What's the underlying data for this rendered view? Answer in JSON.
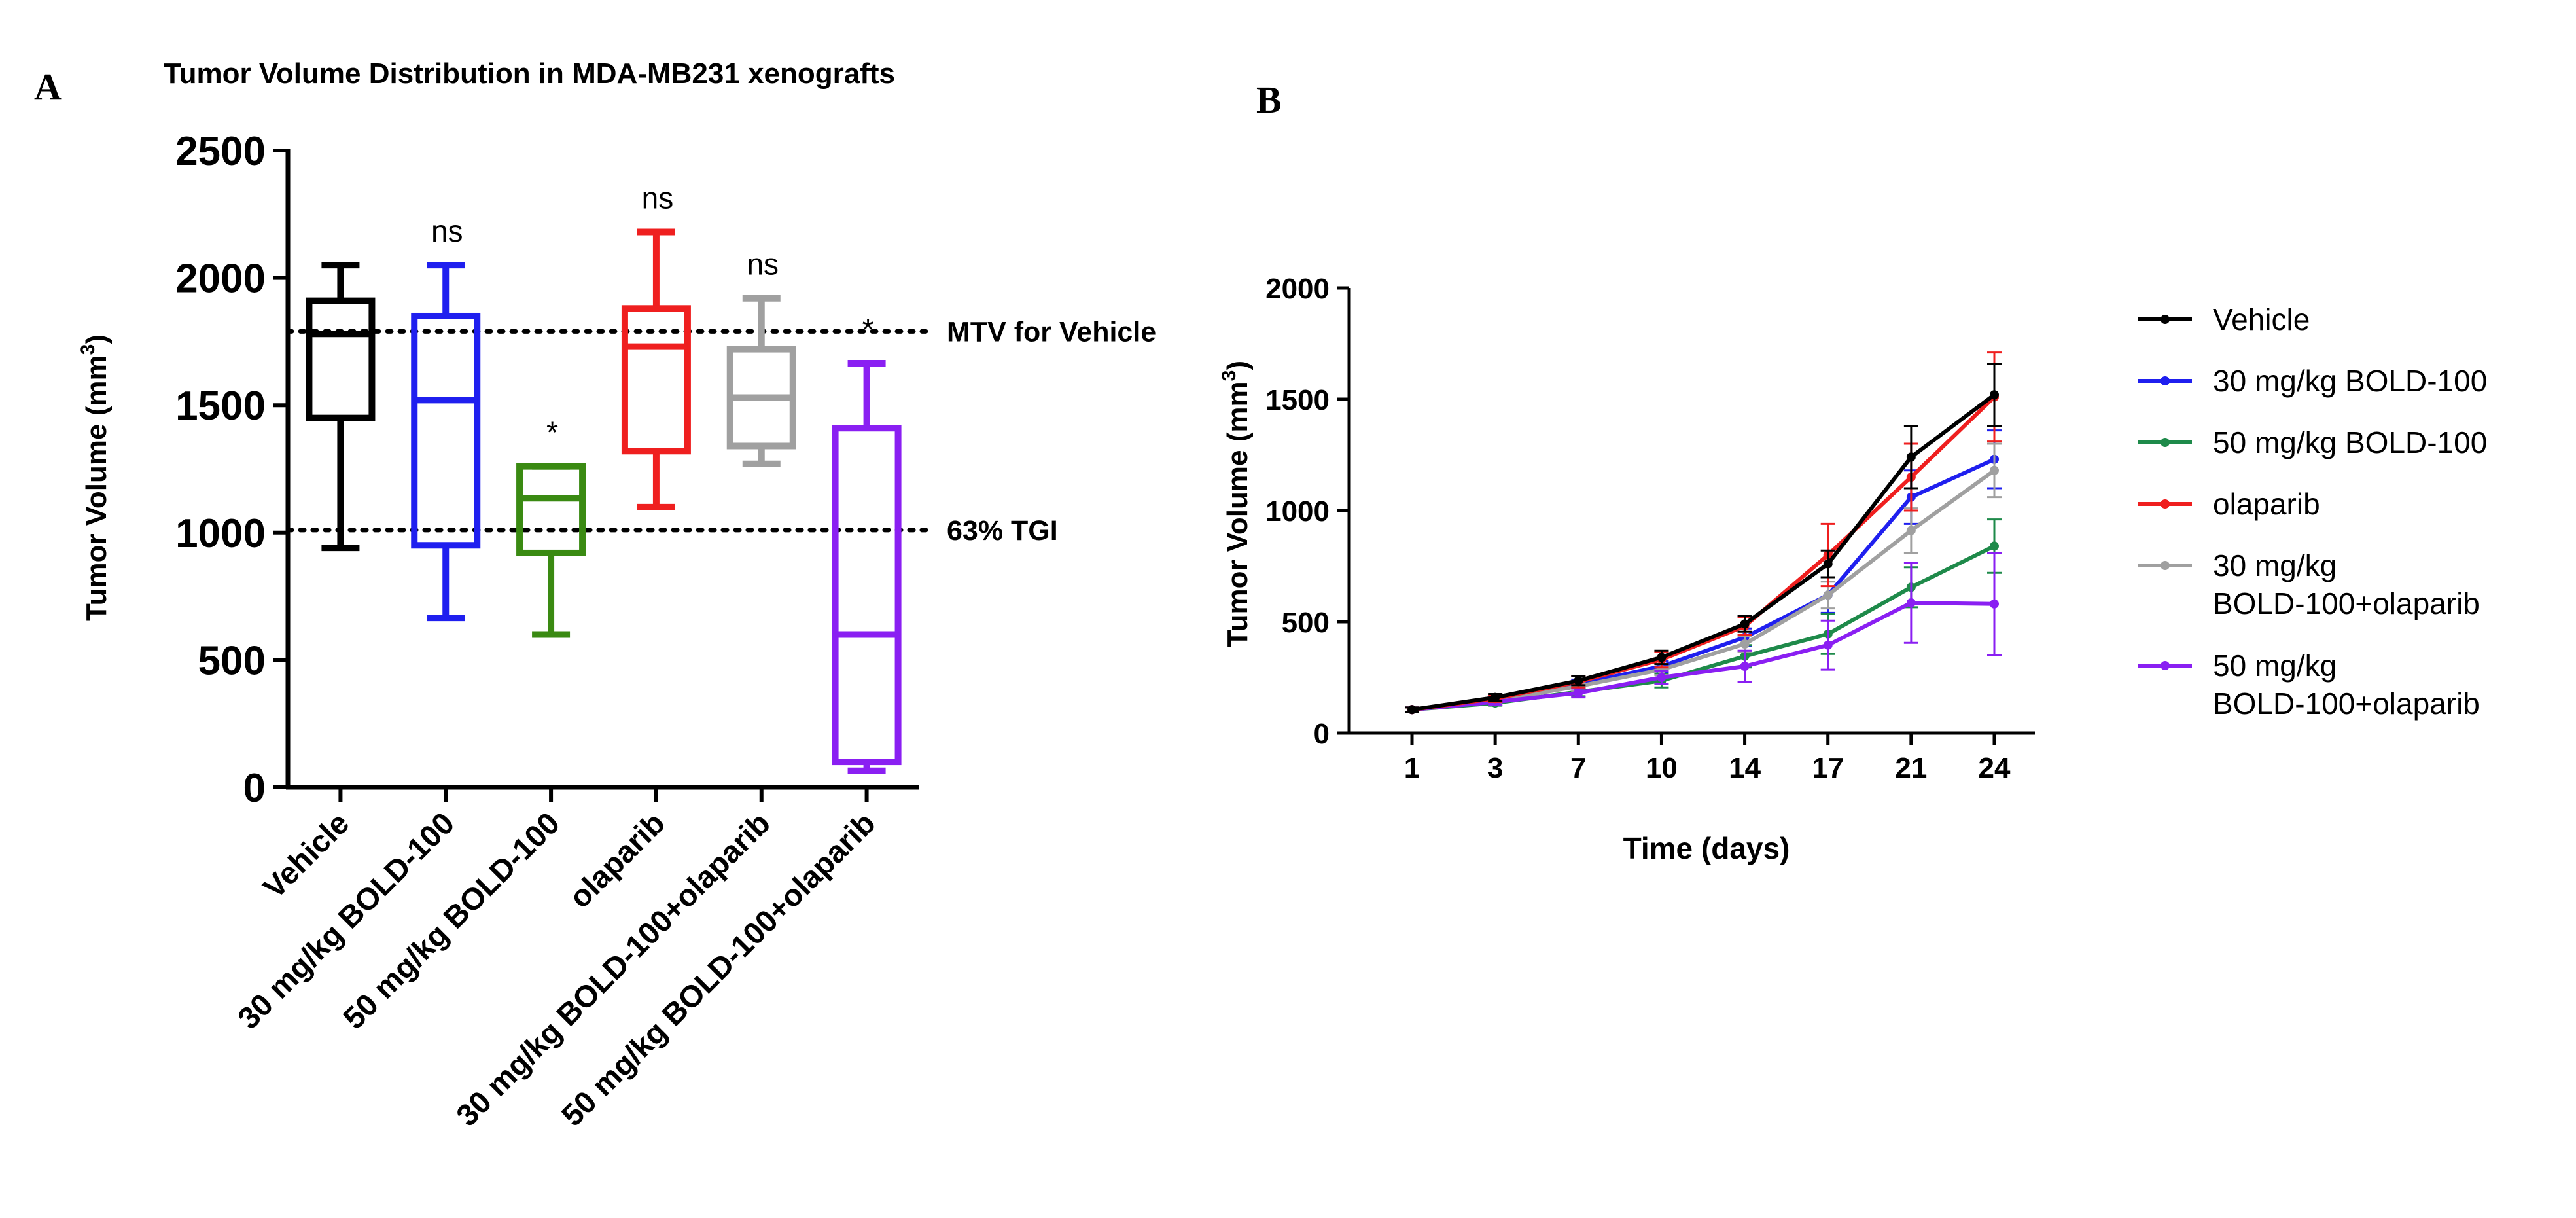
{
  "panel_a_label": "A",
  "panel_b_label": "B",
  "colors": {
    "vehicle": "#000000",
    "bold30": "#1f1fef",
    "bold50_box": "#3a8a12",
    "bold50_line": "#1e8a4a",
    "olaparib": "#ef1f1f",
    "combo30": "#a0a0a0",
    "combo50": "#8a1ff2"
  },
  "chart_data": [
    {
      "id": "A",
      "type": "box",
      "title": "Tumor Volume Distribution in MDA-MB231 xenografts",
      "ylabel": "Tumor Volume (mm",
      "ylabel_sup": "3",
      "ylabel_close": ")",
      "ylim": [
        0,
        2500
      ],
      "yticks": [
        0,
        500,
        1000,
        1500,
        2000,
        2500
      ],
      "reference_lines": [
        {
          "value": 1790,
          "label": "MTV for Vehicle"
        },
        {
          "value": 1010,
          "label": "63% TGI"
        }
      ],
      "groups": [
        {
          "name": "Vehicle",
          "color_key": "vehicle",
          "min": 940,
          "q1": 1450,
          "median": 1780,
          "q3": 1910,
          "max": 2050,
          "annotation": ""
        },
        {
          "name": "30 mg/kg BOLD-100",
          "color_key": "bold30",
          "min": 665,
          "q1": 950,
          "median": 1520,
          "q3": 1850,
          "max": 2050,
          "annotation": "ns"
        },
        {
          "name": "50 mg/kg BOLD-100",
          "color_key": "bold50_box",
          "min": 600,
          "q1": 920,
          "median": 1135,
          "q3": 1260,
          "max": 1260,
          "annotation": "*"
        },
        {
          "name": "olaparib",
          "color_key": "olaparib",
          "min": 1100,
          "q1": 1320,
          "median": 1730,
          "q3": 1880,
          "max": 2180,
          "annotation": "ns"
        },
        {
          "name": "30 mg/kg BOLD-100+olaparib",
          "color_key": "combo30",
          "min": 1270,
          "q1": 1340,
          "median": 1530,
          "q3": 1720,
          "max": 1920,
          "annotation": "ns"
        },
        {
          "name": "50 mg/kg BOLD-100+olaparib",
          "color_key": "combo50",
          "min": 65,
          "q1": 100,
          "median": 600,
          "q3": 1410,
          "max": 1665,
          "annotation": "*"
        }
      ]
    },
    {
      "id": "B",
      "type": "line",
      "xlabel": "Time (days)",
      "ylabel": "Tumor Volume (mm",
      "ylabel_sup": "3",
      "ylabel_close": ")",
      "categories": [
        "1",
        "3",
        "7",
        "10",
        "14",
        "17",
        "21",
        "24"
      ],
      "ylim": [
        0,
        2000
      ],
      "yticks": [
        0,
        500,
        1000,
        1500,
        2000
      ],
      "series": [
        {
          "name": "Vehicle",
          "color_key": "vehicle",
          "values": [
            105,
            160,
            235,
            340,
            490,
            760,
            1240,
            1520
          ],
          "errors": [
            10,
            15,
            20,
            30,
            35,
            60,
            140,
            140
          ]
        },
        {
          "name": "30 mg/kg BOLD-100",
          "color_key": "bold30",
          "values": [
            105,
            150,
            220,
            300,
            430,
            620,
            1060,
            1230
          ],
          "errors": [
            10,
            15,
            20,
            25,
            40,
            80,
            120,
            130
          ]
        },
        {
          "name": "50 mg/kg BOLD-100",
          "color_key": "bold50_line",
          "values": [
            105,
            135,
            185,
            235,
            345,
            445,
            655,
            840
          ],
          "errors": [
            10,
            12,
            20,
            30,
            50,
            90,
            90,
            120
          ]
        },
        {
          "name": "olaparib",
          "color_key": "olaparib",
          "values": [
            105,
            155,
            230,
            330,
            480,
            800,
            1150,
            1510
          ],
          "errors": [
            10,
            15,
            25,
            35,
            40,
            140,
            150,
            200
          ]
        },
        {
          "name": "30 mg/kg BOLD-100+olaparib",
          "name_lines": [
            "30 mg/kg",
            "BOLD-100+olaparib"
          ],
          "color_key": "combo30",
          "values": [
            105,
            145,
            210,
            285,
            400,
            620,
            910,
            1180
          ],
          "errors": [
            10,
            12,
            20,
            25,
            35,
            60,
            100,
            120
          ]
        },
        {
          "name": "50 mg/kg BOLD-100+olaparib",
          "name_lines": [
            "50 mg/kg",
            "BOLD-100+olaparib"
          ],
          "color_key": "combo50",
          "values": [
            105,
            140,
            180,
            250,
            300,
            395,
            585,
            580
          ],
          "errors": [
            10,
            12,
            20,
            30,
            70,
            110,
            180,
            230
          ]
        }
      ]
    }
  ]
}
